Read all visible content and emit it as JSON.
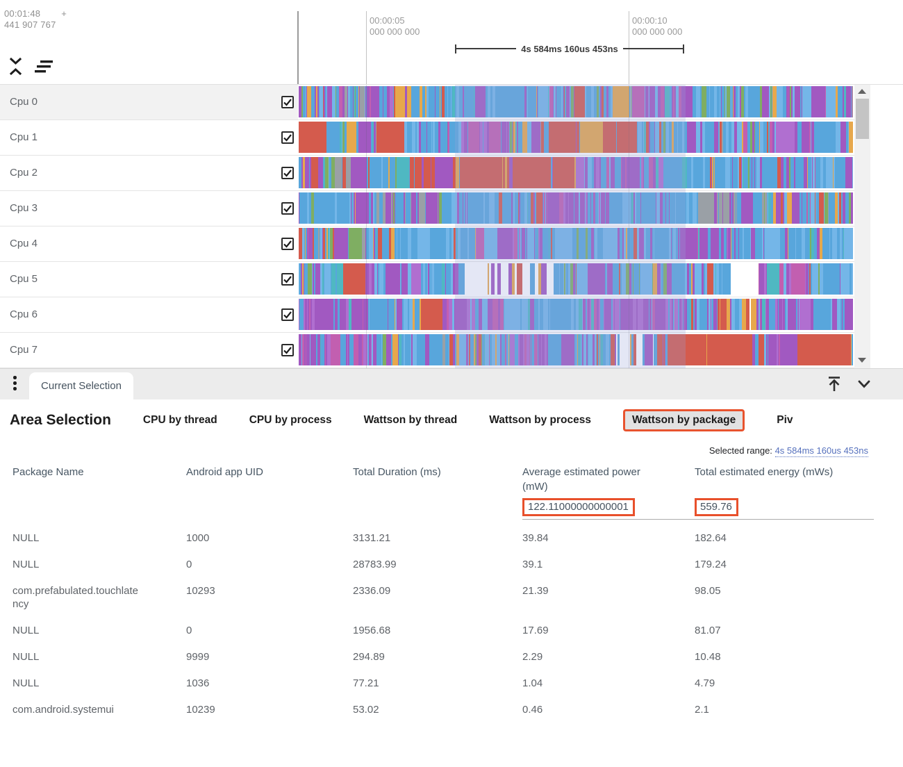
{
  "ruler": {
    "origin_time": "00:01:48",
    "origin_plus": "+",
    "origin_ns": "441 907 767",
    "ticks": [
      {
        "line1": "00:00:05",
        "line2": "000 000 000"
      },
      {
        "line1": "00:00:10",
        "line2": "000 000 000"
      }
    ],
    "selection_duration": "4s 584ms 160us 453ns"
  },
  "tracks": {
    "palette": {
      "blue": "#58a6dc",
      "blue2": "#74b6e8",
      "purple": "#a159c1",
      "purple2": "#b06fd0",
      "magenta": "#c25fb0",
      "red": "#d45b4d",
      "orange": "#e7a84c",
      "green": "#7fae62",
      "teal": "#4fb8c2",
      "gray": "#9aa0a6",
      "white": "#ffffff"
    },
    "rows": [
      {
        "name": "Cpu 0",
        "checked": true,
        "seed": 11,
        "zones": [
          [
            "mixed",
            0.12
          ],
          [
            "purpledom",
            0.05
          ],
          [
            "orangedom",
            0.06
          ],
          [
            "bluedom",
            0.22
          ],
          [
            "mixed",
            0.18
          ],
          [
            "purpledom",
            0.08
          ],
          [
            "bluedom",
            0.17
          ],
          [
            "mixed",
            0.12
          ]
        ]
      },
      {
        "name": "Cpu 1",
        "checked": true,
        "seed": 22,
        "zones": [
          [
            "reddom",
            0.05
          ],
          [
            "mixed",
            0.09
          ],
          [
            "reddom",
            0.05
          ],
          [
            "bluedom",
            0.08
          ],
          [
            "purpledom",
            0.11
          ],
          [
            "mixed",
            0.08
          ],
          [
            "reddom",
            0.15
          ],
          [
            "bluedom",
            0.14
          ],
          [
            "mixed",
            0.1
          ],
          [
            "purpledom",
            0.08
          ],
          [
            "bluedom",
            0.07
          ]
        ]
      },
      {
        "name": "Cpu 2",
        "checked": true,
        "seed": 33,
        "zones": [
          [
            "mixed",
            0.1
          ],
          [
            "bluedom",
            0.1
          ],
          [
            "reddom",
            0.3
          ],
          [
            "purpledom",
            0.16
          ],
          [
            "bluedom",
            0.18
          ],
          [
            "mixed",
            0.16
          ]
        ]
      },
      {
        "name": "Cpu 3",
        "checked": true,
        "seed": 44,
        "zones": [
          [
            "bluedom",
            0.14
          ],
          [
            "graydom",
            0.12
          ],
          [
            "bluedom",
            0.18
          ],
          [
            "purpledom",
            0.12
          ],
          [
            "bluedom",
            0.16
          ],
          [
            "graydom",
            0.12
          ],
          [
            "mixed",
            0.16
          ]
        ]
      },
      {
        "name": "Cpu 4",
        "checked": true,
        "seed": 55,
        "zones": [
          [
            "mixed",
            0.12
          ],
          [
            "bluedom",
            0.2
          ],
          [
            "purpledom",
            0.12
          ],
          [
            "bluedom",
            0.24
          ],
          [
            "purpledom",
            0.1
          ],
          [
            "bluedom",
            0.22
          ]
        ]
      },
      {
        "name": "Cpu 5",
        "checked": true,
        "seed": 66,
        "zones": [
          [
            "bluedom",
            0.08
          ],
          [
            "reddom",
            0.04
          ],
          [
            "purpledom",
            0.1
          ],
          [
            "bluedom",
            0.08
          ],
          [
            "sparse",
            0.16
          ],
          [
            "mixed",
            0.12
          ],
          [
            "bluedom",
            0.2
          ],
          [
            "sparse",
            0.05
          ],
          [
            "purpledom",
            0.09
          ],
          [
            "bluedom",
            0.08
          ]
        ]
      },
      {
        "name": "Cpu 6",
        "checked": true,
        "seed": 77,
        "zones": [
          [
            "purpledom",
            0.12
          ],
          [
            "bluedom",
            0.1
          ],
          [
            "reddom",
            0.04
          ],
          [
            "purpledom",
            0.14
          ],
          [
            "bluedom",
            0.12
          ],
          [
            "purpledom",
            0.18
          ],
          [
            "bluedom",
            0.1
          ],
          [
            "sparse",
            0.03
          ],
          [
            "purpledom",
            0.1
          ],
          [
            "bluedom",
            0.07
          ]
        ]
      },
      {
        "name": "Cpu 7",
        "checked": true,
        "seed": 88,
        "zones": [
          [
            "purpledom",
            0.14
          ],
          [
            "bluedom",
            0.12
          ],
          [
            "mixed",
            0.12
          ],
          [
            "purpledom",
            0.12
          ],
          [
            "bluedom",
            0.06
          ],
          [
            "sparse",
            0.08
          ],
          [
            "reddom",
            0.2
          ],
          [
            "purpledom",
            0.06
          ],
          [
            "reddom",
            0.1
          ]
        ]
      }
    ]
  },
  "bottom_bar": {
    "current_tab": "Current Selection"
  },
  "detail": {
    "title": "Area Selection",
    "tabs": [
      "CPU by thread",
      "CPU by process",
      "Wattson by thread",
      "Wattson by process",
      "Wattson by package",
      "Piv"
    ],
    "active_tab": "Wattson by package",
    "selected_range_label": "Selected range:",
    "selected_range_value": "4s 584ms 160us 453ns",
    "table": {
      "columns": [
        "Package Name",
        "Android app UID",
        "Total Duration (ms)",
        "Average estimated power (mW)",
        "Total estimated energy (mWs)"
      ],
      "summary": {
        "avg_power": "122.11000000000001",
        "total_energy": "559.76"
      },
      "rows": [
        [
          "NULL",
          "1000",
          "3131.21",
          "39.84",
          "182.64"
        ],
        [
          "NULL",
          "0",
          "28783.99",
          "39.1",
          "179.24"
        ],
        [
          "com.prefabulated.touchlatency",
          "10293",
          "2336.09",
          "21.39",
          "98.05"
        ],
        [
          "NULL",
          "0",
          "1956.68",
          "17.69",
          "81.07"
        ],
        [
          "NULL",
          "9999",
          "294.89",
          "2.29",
          "10.48"
        ],
        [
          "NULL",
          "1036",
          "77.21",
          "1.04",
          "4.79"
        ],
        [
          "com.android.systemui",
          "10239",
          "53.02",
          "0.46",
          "2.1"
        ]
      ]
    }
  },
  "colors": {
    "accent_orange": "#e8502b",
    "selection_overlay": "#96a1d8",
    "link_blue": "#5671bd"
  }
}
